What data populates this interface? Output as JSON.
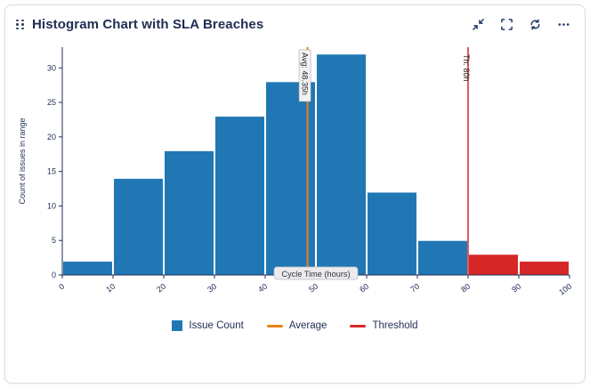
{
  "header": {
    "title": "Histogram Chart with SLA Breaches",
    "action_icons": [
      "compress-icon",
      "fullscreen-icon",
      "refresh-icon",
      "more-options-icon"
    ]
  },
  "colors": {
    "bar_blue": "#2077b4",
    "bar_red": "#d62728",
    "avg_line": "#e8821a",
    "threshold_line": "#d62728",
    "axis_text": "#1f2d54",
    "title_text": "#1f2d54"
  },
  "chart_data": {
    "type": "bar",
    "title": "",
    "xlabel": "Cycle Time (hours)",
    "ylabel": "Count of issues in range",
    "bin_edges": [
      0,
      10,
      20,
      30,
      40,
      50,
      60,
      70,
      80,
      90,
      100
    ],
    "values": [
      2,
      14,
      18,
      23,
      28,
      32,
      12,
      5,
      3,
      2
    ],
    "bar_colors": [
      "blue",
      "blue",
      "blue",
      "blue",
      "blue",
      "blue",
      "blue",
      "blue",
      "red",
      "red"
    ],
    "xticks": [
      0,
      10,
      20,
      30,
      40,
      50,
      60,
      70,
      80,
      90,
      100
    ],
    "yticks": [
      0,
      5,
      10,
      15,
      20,
      25,
      30
    ],
    "xlim": [
      0,
      100
    ],
    "ylim": [
      0,
      33
    ],
    "grid": false,
    "legend_position": "bottom",
    "avg_line": {
      "x": 48.35,
      "label": "Avg: 48.35h"
    },
    "threshold_line": {
      "x": 80,
      "label": "Th: 80h"
    }
  },
  "legend": {
    "items": [
      {
        "label": "Issue Count",
        "swatch": "square",
        "color": "#2077b4"
      },
      {
        "label": "Average",
        "swatch": "line",
        "color": "#e8821a"
      },
      {
        "label": "Threshold",
        "swatch": "line",
        "color": "#d62728"
      }
    ]
  }
}
